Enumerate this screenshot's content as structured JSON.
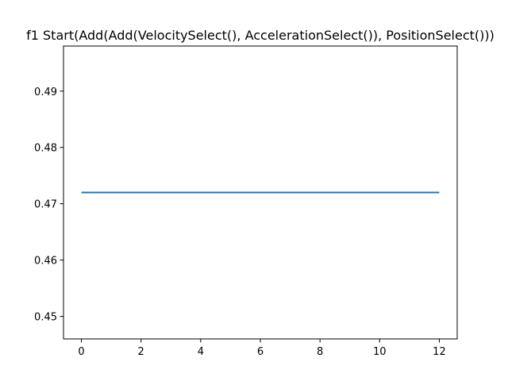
{
  "chart_data": {
    "type": "line",
    "title": "f1 Start(Add(Add(VelocitySelect(), AccelerationSelect()), PositionSelect()))",
    "xlabel": "",
    "ylabel": "",
    "x": [
      0,
      1,
      2,
      3,
      4,
      5,
      6,
      7,
      8,
      9,
      10,
      11,
      12
    ],
    "series": [
      {
        "values": [
          0.472,
          0.472,
          0.472,
          0.472,
          0.472,
          0.472,
          0.472,
          0.472,
          0.472,
          0.472,
          0.472,
          0.472,
          0.472
        ],
        "color": "#1f77b4"
      }
    ],
    "xlim": [
      -0.6,
      12.6
    ],
    "ylim": [
      0.446,
      0.498
    ],
    "xticks": [
      0,
      2,
      4,
      6,
      8,
      10,
      12
    ],
    "yticks": [
      0.45,
      0.46,
      0.47,
      0.48,
      0.49
    ],
    "ytick_labels": [
      "0.45",
      "0.46",
      "0.47",
      "0.48",
      "0.49"
    ],
    "grid": false,
    "legend": "none"
  }
}
